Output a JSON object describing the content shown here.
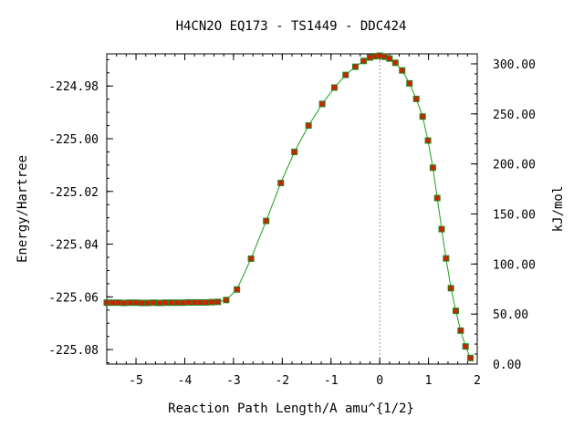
{
  "chart_data": {
    "type": "line",
    "title": "H4CN2O   EQ173 - TS1449 - DDC424",
    "xlabel": "Reaction Path Length/A amu^{1/2}",
    "ylabel": "Energy/Hartree",
    "y2label": "kJ/mol",
    "xlim": [
      -5.6,
      2.0
    ],
    "ylim": [
      -225.0855,
      -224.9678
    ],
    "y2lim": [
      0.0,
      310.0
    ],
    "xticks": [
      -5,
      -4,
      -3,
      -2,
      -1,
      0,
      1,
      2
    ],
    "xtick_labels": [
      "-5",
      "-4",
      "-3",
      "-2",
      "-1",
      "0",
      "1",
      "2"
    ],
    "yticks": [
      -224.98,
      -225.0,
      -225.02,
      -225.04,
      -225.06,
      -225.08
    ],
    "ytick_labels": [
      "-224.98",
      "-225.00",
      "-225.02",
      "-225.04",
      "-225.06",
      "-225.08"
    ],
    "y2ticks": [
      0,
      50,
      100,
      150,
      200,
      250,
      300
    ],
    "y2tick_labels": [
      "0.00",
      "50.00",
      "100.00",
      "150.00",
      "200.00",
      "250.00",
      "300.00"
    ],
    "ts_marker_x": 0,
    "colors": {
      "line": "#1aa01a",
      "marker_fill": "#cc2200",
      "marker_edge": "#228822",
      "ts_line": "#999999"
    },
    "series": [
      {
        "x": [
          -5.6,
          -5.48,
          -5.36,
          -5.24,
          -5.12,
          -5.0,
          -4.88,
          -4.76,
          -4.64,
          -4.52,
          -4.4,
          -4.28,
          -4.16,
          -4.04,
          -3.92,
          -3.8,
          -3.68,
          -3.56,
          -3.44,
          -3.32,
          -3.15,
          -2.93,
          -2.64,
          -2.33,
          -2.03,
          -1.75,
          -1.46,
          -1.18,
          -0.93,
          -0.7,
          -0.5,
          -0.33,
          -0.2,
          -0.1,
          0.0,
          0.1,
          0.2,
          0.32,
          0.46,
          0.61,
          0.75,
          0.88,
          0.99,
          1.09,
          1.18,
          1.27,
          1.36,
          1.46,
          1.56,
          1.66,
          1.76,
          1.86
        ],
        "y": [
          -225.0622,
          -225.0622,
          -225.0622,
          -225.0623,
          -225.0622,
          -225.0622,
          -225.0623,
          -225.0623,
          -225.0622,
          -225.0623,
          -225.0622,
          -225.0622,
          -225.0622,
          -225.0622,
          -225.0621,
          -225.0621,
          -225.0621,
          -225.0621,
          -225.062,
          -225.0619,
          -225.0612,
          -225.0572,
          -225.0455,
          -225.0312,
          -225.0168,
          -225.005,
          -224.995,
          -224.9868,
          -224.9806,
          -224.9758,
          -224.9727,
          -224.9705,
          -224.9692,
          -224.9687,
          -224.9685,
          -224.9689,
          -224.9696,
          -224.9712,
          -224.9741,
          -224.979,
          -224.9849,
          -224.9916,
          -225.0007,
          -225.011,
          -225.0225,
          -225.0343,
          -225.0454,
          -225.0567,
          -225.0653,
          -225.0728,
          -225.0788,
          -225.0832
        ]
      }
    ]
  }
}
